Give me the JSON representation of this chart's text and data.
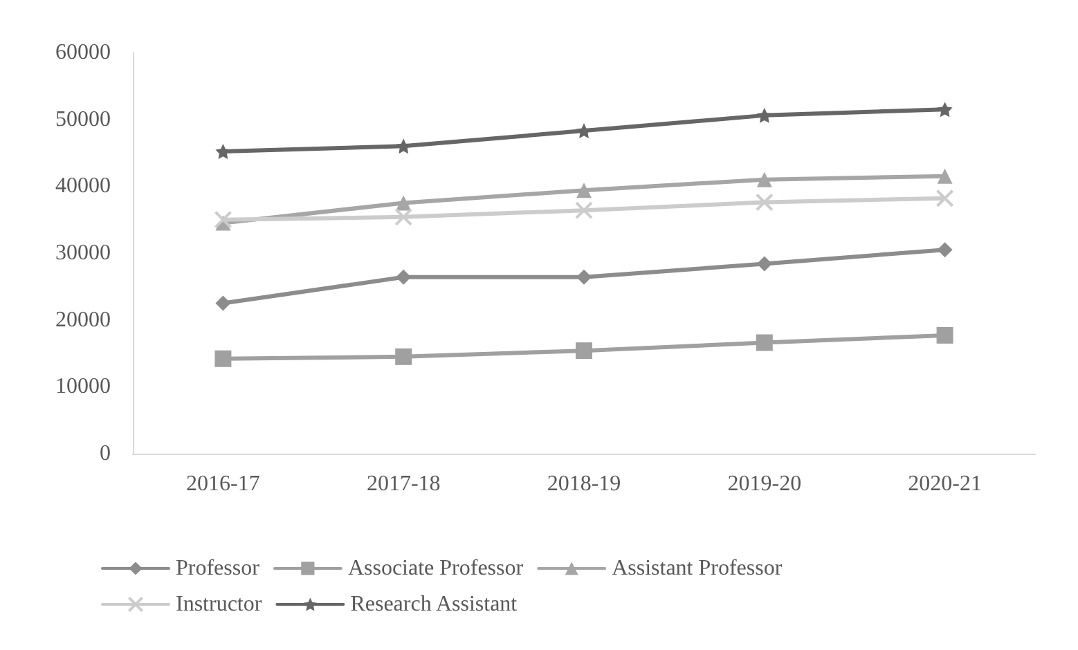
{
  "chart_data": {
    "type": "line",
    "categories": [
      "2016-17",
      "2017-18",
      "2018-19",
      "2019-20",
      "2020-21"
    ],
    "series": [
      {
        "name": "Professor",
        "color": "#8c8c8c",
        "marker": "diamond",
        "values": [
          22500,
          26400,
          26400,
          28400,
          30500
        ]
      },
      {
        "name": "Associate Professor",
        "color": "#a0a0a0",
        "marker": "square",
        "values": [
          14200,
          14500,
          15400,
          16600,
          17700
        ]
      },
      {
        "name": "Assistant Professor",
        "color": "#a6a6a6",
        "marker": "triangle",
        "values": [
          34500,
          37500,
          39400,
          41000,
          41500
        ]
      },
      {
        "name": "Instructor",
        "color": "#cccccc",
        "marker": "cross",
        "values": [
          35000,
          35400,
          36400,
          37600,
          38200
        ]
      },
      {
        "name": "Research Assistant",
        "color": "#666666",
        "marker": "star",
        "values": [
          45200,
          46000,
          48300,
          50600,
          51500
        ]
      }
    ],
    "ylim": [
      0,
      60000
    ],
    "yticks": [
      0,
      10000,
      20000,
      30000,
      40000,
      50000,
      60000
    ],
    "grid": false,
    "legend": "bottom"
  }
}
